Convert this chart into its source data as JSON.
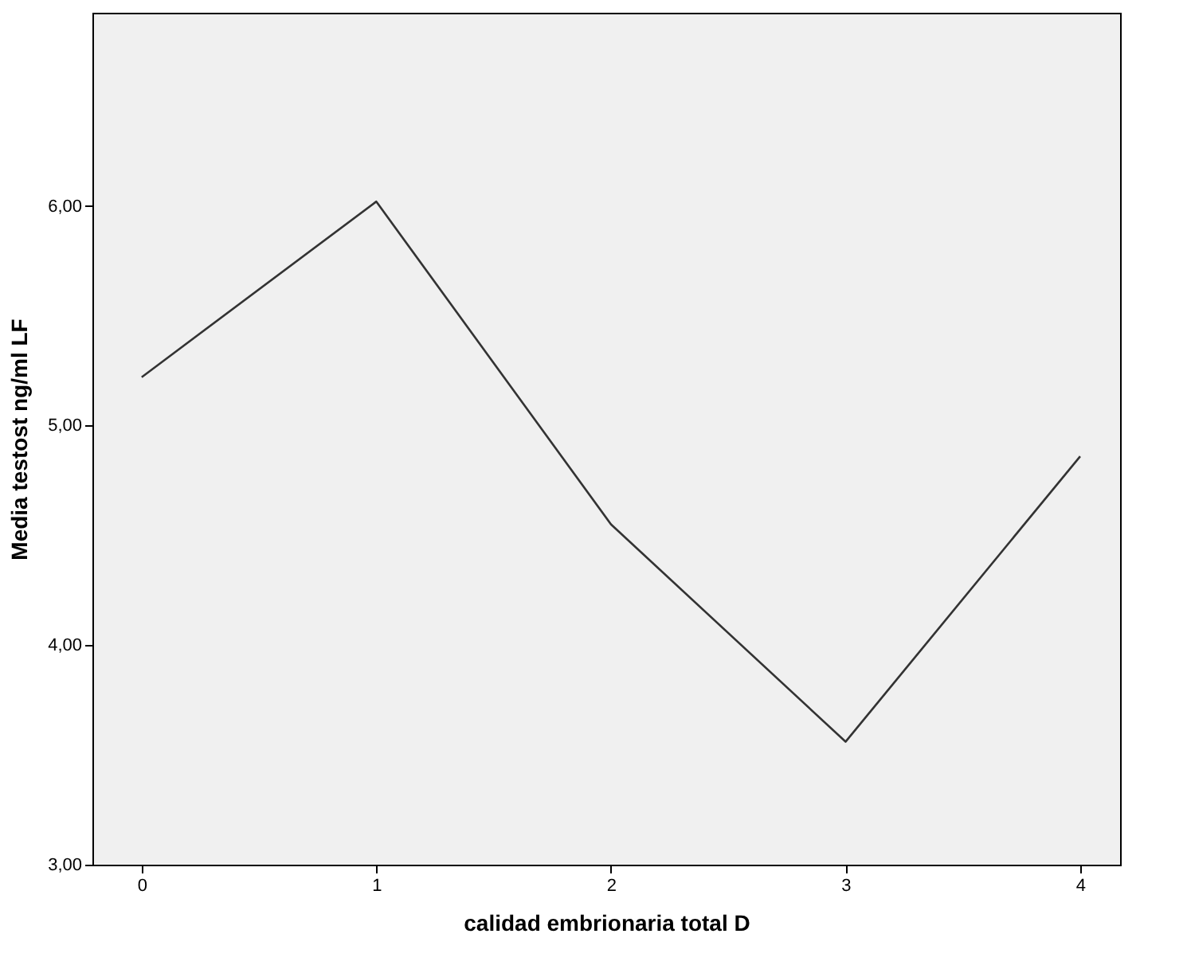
{
  "chart_data": {
    "type": "line",
    "xlabel": "calidad embrionaria total D",
    "ylabel": "Media testost ng/ml LF",
    "categories": [
      "0",
      "1",
      "2",
      "3",
      "4"
    ],
    "series": [
      {
        "color": "#333333",
        "values": [
          5.22,
          6.02,
          4.55,
          3.56,
          4.86
        ]
      }
    ],
    "ylim": [
      3.0,
      6.88
    ],
    "yticks": [
      {
        "value": 3,
        "label": "3,00"
      },
      {
        "value": 4,
        "label": "4,00"
      },
      {
        "value": 5,
        "label": "5,00"
      },
      {
        "value": 6,
        "label": "6,00"
      }
    ],
    "grid": false,
    "marker": "none",
    "line_style": "solid"
  }
}
